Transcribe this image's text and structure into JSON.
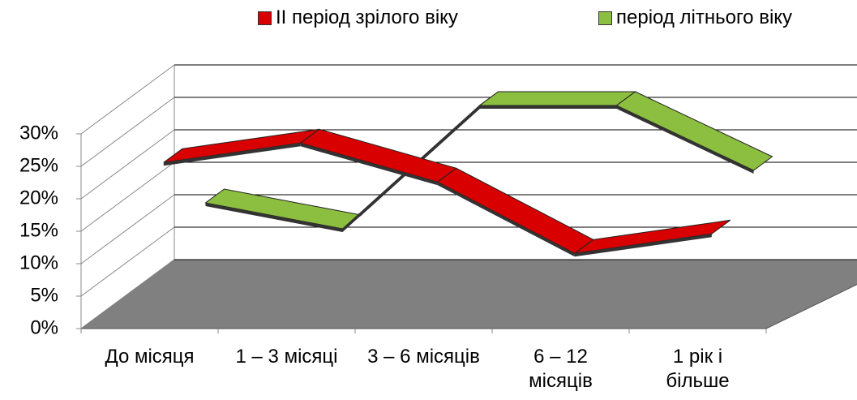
{
  "chart_data": {
    "type": "line3d",
    "categories": [
      "До місяця",
      "1 – 3 місяці",
      "3 – 6 місяців",
      "6 – 12 місяців",
      "1 рік і більше"
    ],
    "series": [
      {
        "name": "ІІ період зрілого віку",
        "color": "#d80000",
        "values": [
          24,
          27,
          21,
          10,
          13
        ]
      },
      {
        "name": "період літнього віку",
        "color": "#8cbf3f",
        "values": [
          13,
          9,
          28,
          28,
          18
        ]
      }
    ],
    "ylim": [
      0,
      30
    ],
    "yticks": [
      {
        "value": 0,
        "label": "0%"
      },
      {
        "value": 5,
        "label": "5%"
      },
      {
        "value": 10,
        "label": "10%"
      },
      {
        "value": 15,
        "label": "15%"
      },
      {
        "value": 20,
        "label": "20%"
      },
      {
        "value": 25,
        "label": "25%"
      },
      {
        "value": 30,
        "label": "30%"
      }
    ],
    "grid": true,
    "legend": "top"
  }
}
